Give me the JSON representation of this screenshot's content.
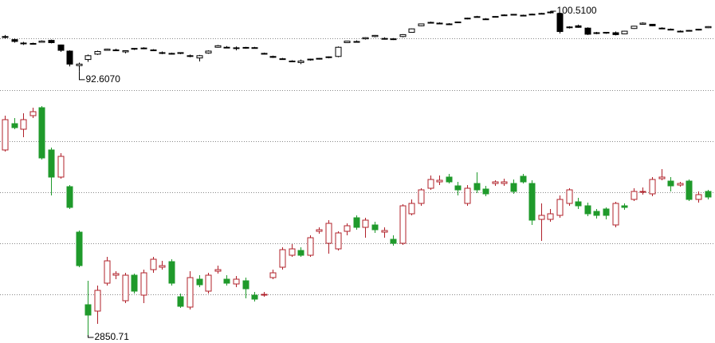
{
  "chart_data": [
    {
      "type": "candlestick",
      "grid": true,
      "up_color": "#ffffff",
      "down_color": "#000000",
      "edge_color": "#000000",
      "ylim": [
        90.2,
        101.97
      ],
      "yticks": [
        96.97,
        90.2
      ],
      "open": [
        97.2,
        96.8,
        96.35,
        96.25,
        96.45,
        96.7,
        96.1,
        95.3,
        93.4,
        94.2,
        94.9,
        95.4,
        95.45,
        95.2,
        95.55,
        95.7,
        95.45,
        95.1,
        94.95,
        95.0,
        94.7,
        94.4,
        95.05,
        95.8,
        95.8,
        95.73,
        95.7,
        95.75,
        95.0,
        94.6,
        94.3,
        94.0,
        93.8,
        94.15,
        94.3,
        94.45,
        94.6,
        96.4,
        96.55,
        96.9,
        97.2,
        96.95,
        96.85,
        97.2,
        97.75,
        98.6,
        98.95,
        98.95,
        98.8,
        99.0,
        99.5,
        99.8,
        99.5,
        99.75,
        99.95,
        100.05,
        99.95,
        100.1,
        100.15,
        100.3,
        100.2,
        98.4,
        98.6,
        98.3,
        97.6,
        97.65,
        97.7,
        97.55,
        98.25,
        98.8,
        98.8,
        98.3,
        98.15,
        97.9,
        97.95,
        98.05,
        98.35
      ],
      "high": [
        97.4,
        96.95,
        96.5,
        96.4,
        96.7,
        96.8,
        96.15,
        95.4,
        93.8,
        94.85,
        95.35,
        95.6,
        95.6,
        95.4,
        95.7,
        95.8,
        95.55,
        95.25,
        95.1,
        95.15,
        94.85,
        94.8,
        95.4,
        96.1,
        95.95,
        95.9,
        95.85,
        95.85,
        95.1,
        94.7,
        94.4,
        94.1,
        94.2,
        94.3,
        94.4,
        94.6,
        95.9,
        96.65,
        96.7,
        97.1,
        97.4,
        97.1,
        97.0,
        97.5,
        98.25,
        98.9,
        99.15,
        99.05,
        98.95,
        99.15,
        99.65,
        99.9,
        99.6,
        99.85,
        100.1,
        100.15,
        100.05,
        100.2,
        100.3,
        100.51,
        100.3,
        98.55,
        98.75,
        98.4,
        97.8,
        97.8,
        97.85,
        97.95,
        98.6,
        99.05,
        98.85,
        98.4,
        98.25,
        98.0,
        98.05,
        98.2,
        98.55
      ],
      "low": [
        96.95,
        96.4,
        96.1,
        96.15,
        96.4,
        96.3,
        95.2,
        93.3,
        92.607,
        93.9,
        94.8,
        95.35,
        95.3,
        95.0,
        95.45,
        95.55,
        95.3,
        94.9,
        94.85,
        94.9,
        94.5,
        93.95,
        94.95,
        95.75,
        95.7,
        95.4,
        95.6,
        95.65,
        94.85,
        94.4,
        94.2,
        93.85,
        93.6,
        94.05,
        94.2,
        94.35,
        94.5,
        96.35,
        96.4,
        96.8,
        97.1,
        96.8,
        96.75,
        97.1,
        97.7,
        98.55,
        98.9,
        98.85,
        98.7,
        98.95,
        99.45,
        99.7,
        99.4,
        99.7,
        99.9,
        100.0,
        99.9,
        100.0,
        100.1,
        100.2,
        97.6,
        98.25,
        98.35,
        97.4,
        97.5,
        97.55,
        97.35,
        97.5,
        98.2,
        98.75,
        98.55,
        98.2,
        98.05,
        97.8,
        97.9,
        98.0,
        98.3
      ],
      "close": [
        97.08,
        96.56,
        96.25,
        96.3,
        96.6,
        96.4,
        95.4,
        93.6,
        93.6,
        94.7,
        95.25,
        95.55,
        95.4,
        95.35,
        95.65,
        95.6,
        95.4,
        95.0,
        95.0,
        95.1,
        94.6,
        94.7,
        95.3,
        96.0,
        95.75,
        95.73,
        95.78,
        95.7,
        94.95,
        94.48,
        94.25,
        93.95,
        94.0,
        94.25,
        94.35,
        94.55,
        95.8,
        96.6,
        96.45,
        97.05,
        97.35,
        96.85,
        96.9,
        97.45,
        98.2,
        98.85,
        99.05,
        98.9,
        98.85,
        99.1,
        99.6,
        99.78,
        99.45,
        99.82,
        100.02,
        100.1,
        99.98,
        100.12,
        100.22,
        100.4,
        97.85,
        98.45,
        98.4,
        97.5,
        97.7,
        97.75,
        97.45,
        97.9,
        98.55,
        98.95,
        98.6,
        98.25,
        98.12,
        97.85,
        98.0,
        98.15,
        98.5
      ],
      "annotations": [
        {
          "label": "100.5100",
          "value": 100.51
        },
        {
          "label": "92.6070",
          "value": 92.607
        }
      ]
    },
    {
      "type": "candlestick",
      "grid": true,
      "up_color": "#ffffff",
      "down_color": "#1f9a2b",
      "edge_color": "#b0202a",
      "ylim": [
        2838.2,
        3234.45
      ],
      "yticks": [
        3154.45,
        3074.45,
        2994.45,
        2914.45
      ],
      "open": [
        3140.7,
        3181.95,
        3173.2,
        3194.45,
        3206.95,
        3140.7,
        3098.2,
        3083.2,
        3011.95,
        2898.2,
        2888.2,
        2931.95,
        2944.45,
        2904.45,
        2944.45,
        2913.2,
        2953.2,
        2956.95,
        2965.7,
        2910.7,
        2894.45,
        2938.2,
        2919.45,
        2950.7,
        2938.2,
        2930.7,
        2935.7,
        2913.2,
        2913.2,
        2940.7,
        2956.95,
        2975.7,
        2983.2,
        2975.7,
        3013.2,
        2994.45,
        2985.7,
        3013.2,
        3034.45,
        3019.45,
        3023.2,
        3011.95,
        3000.7,
        2994.45,
        3040.7,
        3056.95,
        3080.7,
        3090.7,
        3098.2,
        3084.45,
        3056.95,
        3088.2,
        3079.45,
        3088.2,
        3088.2,
        3088.2,
        3099.45,
        3088.2,
        3031.95,
        3031.95,
        3038.2,
        3056.95,
        3059.45,
        3053.2,
        3044.45,
        3048.2,
        3023.2,
        3053.2,
        3063.2,
        3074.45,
        3071.95,
        3095.7,
        3091.95,
        3085.7,
        3091.95,
        3063.2,
        3075.7
      ],
      "high": [
        3194.45,
        3190.7,
        3198.2,
        3206.95,
        3209.45,
        3144.45,
        3135.7,
        3085.7,
        3014.45,
        2935.7,
        2928.2,
        2973.2,
        2950.7,
        2948.2,
        2946.95,
        2953.2,
        2973.2,
        2966.95,
        2969.45,
        2915.7,
        2950.7,
        2944.45,
        2948.2,
        2959.45,
        2944.45,
        2943.2,
        2940.7,
        2918.2,
        2918.2,
        2953.2,
        2988.2,
        2993.2,
        2988.2,
        3006.95,
        3019.45,
        3030.7,
        3013.2,
        3025.7,
        3038.2,
        3034.45,
        3028.2,
        3019.45,
        3006.95,
        3055.7,
        3063.2,
        3080.7,
        3100.7,
        3100.7,
        3103.2,
        3090.7,
        3085.7,
        3105.7,
        3084.45,
        3093.2,
        3095.7,
        3094.45,
        3103.2,
        3093.2,
        3056.95,
        3048.2,
        3069.45,
        3080.7,
        3065.7,
        3058.2,
        3048.2,
        3050.7,
        3059.45,
        3056.95,
        3080.7,
        3081.95,
        3098.2,
        3110.7,
        3098.2,
        3090.7,
        3094.45,
        3075.7,
        3078.2
      ],
      "low": [
        3138.2,
        3173.2,
        3160.7,
        3190.7,
        3125.7,
        3069.45,
        3095.7,
        3048.2,
        2956.95,
        2850.71,
        2868.2,
        2928.2,
        2938.2,
        2900.7,
        2915.7,
        2900.7,
        2948.2,
        2953.2,
        2928.2,
        2893.2,
        2890.7,
        2925.7,
        2915.7,
        2946.95,
        2928.2,
        2925.7,
        2908.2,
        2903.2,
        2910.7,
        2938.2,
        2953.2,
        2973.2,
        2973.2,
        2973.2,
        3009.45,
        2978.2,
        2983.2,
        3006.95,
        3015.7,
        3003.2,
        3010.7,
        3003.2,
        2990.7,
        2991.95,
        3038.2,
        3053.2,
        3078.2,
        3085.7,
        3088.2,
        3069.45,
        3053.2,
        3073.2,
        3068.2,
        3084.45,
        3084.45,
        3071.95,
        3088.2,
        3023.2,
        2998.2,
        3028.2,
        3034.45,
        3053.2,
        3048.2,
        3036.95,
        3033.2,
        3031.95,
        3019.45,
        3046.95,
        3060.7,
        3070.7,
        3068.2,
        3093.2,
        3075.7,
        3083.2,
        3060.7,
        3058.2,
        3063.2
      ],
      "close": [
        3188.2,
        3175.7,
        3188.2,
        3200.7,
        3128.2,
        3098.2,
        3130.7,
        3050.7,
        2959.45,
        2881.95,
        2920.7,
        2966.95,
        2946.95,
        2944.45,
        2919.45,
        2948.2,
        2969.45,
        2959.45,
        2931.95,
        2895.7,
        2940.7,
        2929.45,
        2944.45,
        2953.2,
        2931.95,
        2938.2,
        2923.2,
        2906.95,
        2914.45,
        2948.2,
        2984.45,
        2985.7,
        2975.7,
        3003.2,
        3015.7,
        3025.7,
        3010.7,
        3021.95,
        3019.45,
        3030.7,
        3015.7,
        3014.45,
        2994.45,
        3053.2,
        3056.95,
        3078.2,
        3094.45,
        3093.2,
        3090.7,
        3078.2,
        3080.7,
        3078.2,
        3071.95,
        3090.7,
        3090.7,
        3075.7,
        3090.7,
        3030.7,
        3038.2,
        3040.7,
        3063.2,
        3078.2,
        3053.2,
        3040.7,
        3038.2,
        3038.2,
        3056.95,
        3050.7,
        3075.7,
        3075.7,
        3094.45,
        3098.2,
        3084.45,
        3088.2,
        3063.2,
        3070.7,
        3066.95
      ],
      "annotations": [
        {
          "label": "2850.71",
          "value": 2850.71
        }
      ]
    }
  ]
}
